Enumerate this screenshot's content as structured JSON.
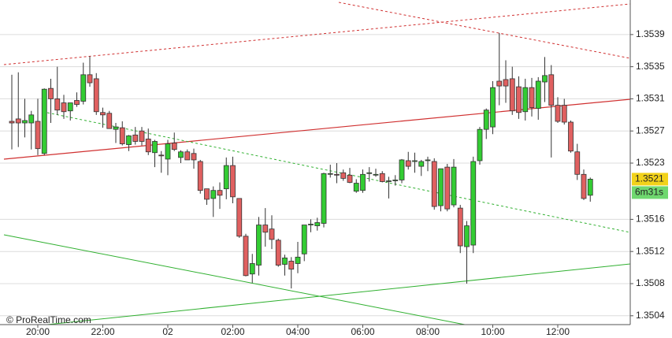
{
  "chart_data": {
    "type": "candlestick",
    "categories": [
      null,
      null,
      null,
      null,
      "20:00",
      null,
      null,
      null,
      null,
      null,
      null,
      null,
      null,
      null,
      "22:00",
      null,
      null,
      null,
      null,
      null,
      null,
      null,
      null,
      null,
      "02",
      null,
      null,
      null,
      null,
      null,
      null,
      null,
      null,
      null,
      "02:00",
      null,
      null,
      null,
      null,
      null,
      null,
      null,
      null,
      null,
      "04:00",
      null,
      null,
      null,
      null,
      null,
      null,
      null,
      null,
      null,
      "06:00",
      null,
      null,
      null,
      null,
      null,
      null,
      null,
      null,
      null,
      "08:00",
      null,
      null,
      null,
      null,
      null,
      null,
      null,
      null,
      null,
      "10:00",
      null,
      null,
      null,
      null,
      null,
      null,
      null,
      null,
      null,
      "12:00",
      null,
      null,
      null,
      null,
      null
    ],
    "open": [
      1.35282,
      1.35285,
      1.3528,
      1.3528,
      1.35282,
      1.35242,
      1.35323,
      1.3531,
      1.35305,
      1.35295,
      1.35308,
      1.35307,
      1.3534,
      1.35335,
      1.35293,
      1.35292,
      1.35272,
      1.35274,
      1.35253,
      1.35265,
      1.3527,
      1.3526,
      1.35243,
      1.3524,
      1.35235,
      1.35255,
      1.35237,
      1.35244,
      1.35242,
      1.35232,
      1.35198,
      1.35186,
      1.35196,
      1.35198,
      1.35227,
      1.35186,
      1.35139,
      1.35092,
      1.35103,
      1.35153,
      1.35148,
      1.35134,
      1.35104,
      1.35108,
      1.35105,
      1.35117,
      1.35153,
      1.35152,
      1.35155,
      1.35217,
      1.35216,
      1.35218,
      1.35215,
      1.35195,
      1.35196,
      1.35217,
      1.35216,
      1.35217,
      1.35208,
      1.35208,
      1.35209,
      1.35233,
      1.35232,
      1.35226,
      1.35233,
      1.35232,
      1.35177,
      1.35225,
      1.35178,
      1.35174,
      1.35126,
      1.35128,
      1.35233,
      1.35272,
      1.35275,
      1.35332,
      1.35334,
      1.35335,
      1.35325,
      1.35294,
      1.35324,
      1.35298,
      1.35331,
      1.3534,
      1.35302,
      1.35302,
      1.35281,
      1.35244,
      1.35216,
      1.3519
    ],
    "high": [
      1.3534,
      1.35343,
      1.3531,
      1.35295,
      1.3531,
      1.35323,
      1.35335,
      1.3535,
      1.35315,
      1.35305,
      1.35318,
      1.35355,
      1.35363,
      1.35342,
      1.35299,
      1.35295,
      1.3528,
      1.35282,
      1.35265,
      1.35275,
      1.35275,
      1.35273,
      1.35259,
      1.35245,
      1.35259,
      1.35268,
      1.35246,
      1.35247,
      1.35248,
      1.35234,
      1.35198,
      1.35201,
      1.35206,
      1.35237,
      1.35238,
      1.35186,
      1.35142,
      1.35117,
      1.35163,
      1.35174,
      1.35165,
      1.35136,
      1.35116,
      1.35113,
      1.35132,
      1.35153,
      1.3516,
      1.35162,
      1.35218,
      1.35228,
      1.3523,
      1.35222,
      1.35224,
      1.3521,
      1.35222,
      1.35225,
      1.35223,
      1.3522,
      1.35213,
      1.35215,
      1.35235,
      1.35244,
      1.35243,
      1.35234,
      1.35238,
      1.35236,
      1.35223,
      1.35229,
      1.35235,
      1.35178,
      1.35158,
      1.35238,
      1.35275,
      1.35298,
      1.35332,
      1.35392,
      1.35358,
      1.3535,
      1.35338,
      1.35335,
      1.35336,
      1.35337,
      1.35362,
      1.35352,
      1.35312,
      1.3531,
      1.35283,
      1.35254,
      1.35222,
      1.35212
    ],
    "low": [
      1.35247,
      1.3525,
      1.35262,
      1.35247,
      1.3524,
      1.3524,
      1.3528,
      1.3529,
      1.35285,
      1.35283,
      1.353,
      1.35303,
      1.35325,
      1.3529,
      1.35274,
      1.35273,
      1.35255,
      1.35252,
      1.35245,
      1.35253,
      1.35252,
      1.3524,
      1.35225,
      1.35218,
      1.35215,
      1.35245,
      1.3523,
      1.35234,
      1.35223,
      1.35192,
      1.35178,
      1.35163,
      1.35173,
      1.35185,
      1.3518,
      1.35137,
      1.35089,
      1.35081,
      1.3509,
      1.35126,
      1.35123,
      1.35101,
      1.3509,
      1.35074,
      1.35093,
      1.35108,
      1.35144,
      1.35146,
      1.3515,
      1.35212,
      1.35205,
      1.35208,
      1.35205,
      1.35193,
      1.35193,
      1.35207,
      1.35213,
      1.35206,
      1.35186,
      1.35202,
      1.35205,
      1.35222,
      1.35218,
      1.35214,
      1.3522,
      1.35172,
      1.3517,
      1.3517,
      1.35175,
      1.35118,
      1.3508,
      1.35118,
      1.35228,
      1.3526,
      1.35266,
      1.35302,
      1.35305,
      1.3529,
      1.35285,
      1.35283,
      1.35288,
      1.35284,
      1.35306,
      1.35237,
      1.3528,
      1.35278,
      1.35243,
      1.35209,
      1.35184,
      1.35182
    ],
    "close": [
      1.3528,
      1.3528,
      1.35283,
      1.3529,
      1.35248,
      1.35322,
      1.3531,
      1.35296,
      1.35294,
      1.35305,
      1.35303,
      1.3534,
      1.3533,
      1.35294,
      1.3529,
      1.35273,
      1.35275,
      1.35254,
      1.35264,
      1.35257,
      1.35257,
      1.35244,
      1.35257,
      1.35239,
      1.35254,
      1.35247,
      1.35244,
      1.35234,
      1.35234,
      1.35196,
      1.35185,
      1.35196,
      1.3519,
      1.35227,
      1.35188,
      1.35139,
      1.3509,
      1.35105,
      1.35153,
      1.35144,
      1.35135,
      1.35103,
      1.35112,
      1.35098,
      1.35113,
      1.35153,
      1.35154,
      1.35156,
      1.35217,
      1.35217,
      1.35215,
      1.35211,
      1.35206,
      1.35205,
      1.35216,
      1.35218,
      1.35216,
      1.35207,
      1.35208,
      1.35209,
      1.35234,
      1.35226,
      1.35233,
      1.35232,
      1.35234,
      1.35176,
      1.35223,
      1.35173,
      1.35225,
      1.35127,
      1.35152,
      1.35232,
      1.35272,
      1.35296,
      1.35324,
      1.35326,
      1.35326,
      1.35295,
      1.35293,
      1.35324,
      1.35299,
      1.35332,
      1.35339,
      1.35302,
      1.35282,
      1.35281,
      1.35245,
      1.35216,
      1.35186,
      1.3521
    ],
    "up_color": "#33cc33",
    "down_color": "#e06060",
    "ylim": [
      1.35029,
      1.35433
    ],
    "yticks": [
      1.3504,
      1.3508,
      1.3512,
      1.3516,
      1.3523,
      1.3527,
      1.3531,
      1.3535,
      1.3539
    ],
    "grid": true,
    "last_price": 1.3521,
    "timer": "6m31s",
    "copyright": "© ProRealTime.com"
  }
}
